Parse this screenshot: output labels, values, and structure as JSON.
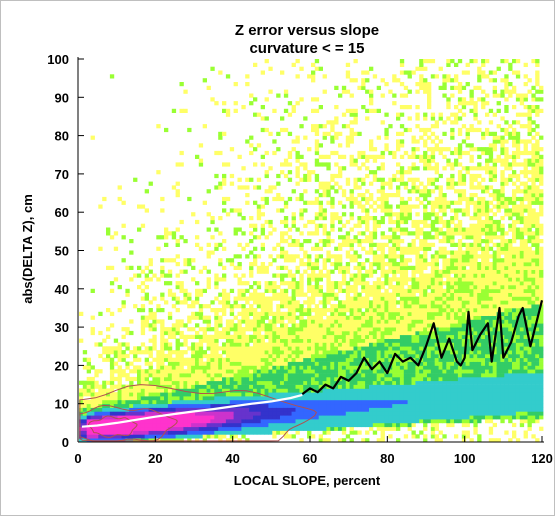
{
  "chart_data": {
    "type": "heatmap",
    "title": "Z error versus slope",
    "subtitle": "curvature < = 15",
    "xlabel": "LOCAL SLOPE, percent",
    "ylabel": "abs(DELTA Z), cm",
    "xlim": [
      0,
      120
    ],
    "ylim": [
      0,
      100
    ],
    "x_ticks": [
      "0",
      "20",
      "40",
      "60",
      "80",
      "100",
      "120"
    ],
    "y_ticks": [
      "0",
      "10",
      "20",
      "30",
      "40",
      "50",
      "60",
      "70",
      "80",
      "90",
      "100"
    ],
    "grid": false,
    "colormap": [
      "#ffff66",
      "#99ff33",
      "#33cc66",
      "#33cccc",
      "#3366ff",
      "#3333cc",
      "#6633cc",
      "#cc33cc",
      "#ff33cc"
    ],
    "contour_color": "#b05050",
    "series": [
      {
        "line_color": "#ffffff",
        "points": [
          [
            1,
            4
          ],
          [
            5,
            4.3
          ],
          [
            10,
            5
          ],
          [
            15,
            5.8
          ],
          [
            20,
            6.6
          ],
          [
            25,
            7.3
          ],
          [
            30,
            8
          ],
          [
            35,
            8.6
          ],
          [
            40,
            9.3
          ],
          [
            45,
            10
          ],
          [
            50,
            10.6
          ],
          [
            55,
            11.5
          ],
          [
            58,
            12.3
          ]
        ]
      },
      {
        "line_color": "#000000",
        "points": [
          [
            58,
            12.5
          ],
          [
            60,
            14
          ],
          [
            62,
            13
          ],
          [
            64,
            15
          ],
          [
            66,
            14
          ],
          [
            68,
            17
          ],
          [
            70,
            16
          ],
          [
            72,
            18
          ],
          [
            74,
            22
          ],
          [
            76,
            19
          ],
          [
            78,
            21
          ],
          [
            80,
            18
          ],
          [
            82,
            23
          ],
          [
            84,
            21
          ],
          [
            86,
            22
          ],
          [
            88,
            20
          ],
          [
            90,
            25
          ],
          [
            92,
            31
          ],
          [
            94,
            22
          ],
          [
            96,
            27
          ],
          [
            98,
            21
          ],
          [
            99,
            20
          ],
          [
            100,
            22
          ],
          [
            101,
            34
          ],
          [
            102,
            24
          ],
          [
            104,
            28
          ],
          [
            106,
            31
          ],
          [
            107,
            21
          ],
          [
            109,
            35
          ],
          [
            110,
            22
          ],
          [
            112,
            26
          ],
          [
            114,
            33
          ],
          [
            115,
            35
          ],
          [
            117,
            25
          ],
          [
            118,
            29
          ],
          [
            120,
            37
          ]
        ]
      }
    ]
  }
}
